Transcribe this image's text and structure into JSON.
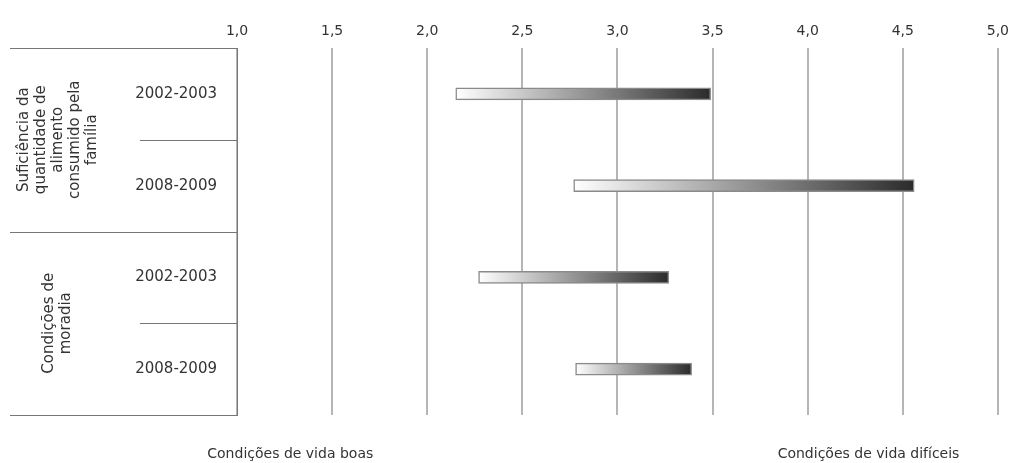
{
  "chart_data": {
    "type": "bar",
    "orientation": "horizontal",
    "categories": [
      "2002-2003",
      "2008-2009",
      "2002-2003",
      "2008-2009"
    ],
    "base": [
      2.15,
      2.77,
      2.27,
      2.78
    ],
    "values": [
      1.34,
      1.79,
      1.0,
      0.61
    ],
    "color": "#2b2b2b",
    "xlim": [
      1,
      5
    ],
    "xticks": [
      {
        "value": 1,
        "label": "1,0"
      },
      {
        "value": 1.5,
        "label": "1,5"
      },
      {
        "value": 2,
        "label": "2,0"
      },
      {
        "value": 2.5,
        "label": "2,5"
      },
      {
        "value": 3,
        "label": "3,0"
      },
      {
        "value": 3.5,
        "label": "3,5"
      },
      {
        "value": 4,
        "label": "4,0"
      },
      {
        "value": 4.5,
        "label": "4,5"
      },
      {
        "value": 5,
        "label": "5,0"
      }
    ],
    "grid": "x",
    "annotations": [
      "Suficiência da quantidade de alimento consumido pela família",
      "Condições de moradia",
      "Condições de vida boas",
      "Condições de vida difíceis"
    ]
  }
}
